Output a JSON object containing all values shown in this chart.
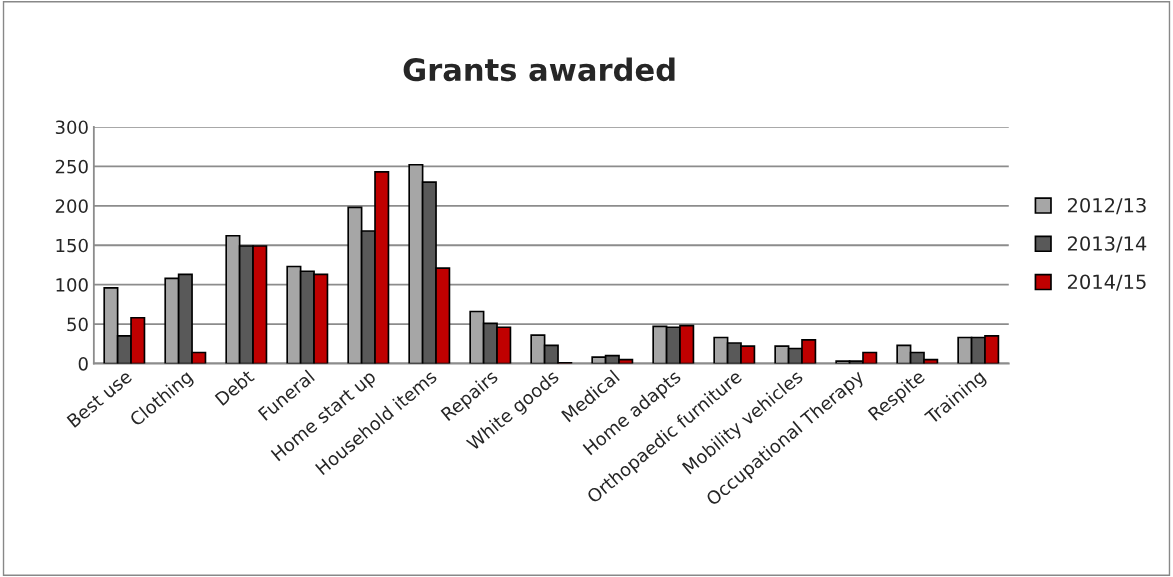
{
  "chart_data": {
    "type": "bar",
    "title": "Grants awarded",
    "categories": [
      "Best use",
      "Clothing",
      "Debt",
      "Funeral",
      "Home start up",
      "Household items",
      "Repairs",
      "White goods",
      "Medical",
      "Home adapts",
      "Orthopaedic furniture",
      "Mobility vehicles",
      "Occupational Therapy",
      "Respite",
      "Training"
    ],
    "series": [
      {
        "name": "2012/13",
        "color": "#a6a6a6",
        "values": [
          96,
          108,
          162,
          123,
          198,
          252,
          66,
          36,
          8,
          47,
          33,
          22,
          3,
          23,
          33
        ]
      },
      {
        "name": "2013/14",
        "color": "#595959",
        "values": [
          35,
          113,
          149,
          117,
          168,
          230,
          51,
          23,
          10,
          46,
          26,
          19,
          3,
          14,
          33
        ]
      },
      {
        "name": "2014/15",
        "color": "#c00000",
        "values": [
          58,
          14,
          149,
          113,
          243,
          121,
          46,
          1,
          5,
          48,
          22,
          30,
          14,
          5,
          35
        ]
      }
    ],
    "ylim": [
      0,
      300
    ],
    "yticks": [
      0,
      50,
      100,
      150,
      200,
      250,
      300
    ],
    "grid": "y",
    "legend": "right"
  }
}
